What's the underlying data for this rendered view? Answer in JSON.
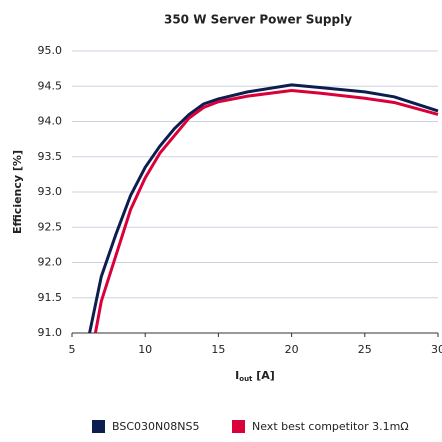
{
  "chart_data": {
    "type": "line",
    "title": "350 W Server Power Supply",
    "ylabel": "Efficiency [%]",
    "xlabel": [
      "I",
      "out",
      " [A]"
    ],
    "xlim": [
      5,
      30
    ],
    "xticks": [
      5,
      10,
      15,
      20,
      25,
      30
    ],
    "ylim": [
      91,
      95
    ],
    "yticks": [
      {
        "value": 91,
        "label": "91.0"
      },
      {
        "value": 91.5,
        "label": "91.5"
      },
      {
        "value": 92,
        "label": "92.0"
      },
      {
        "value": 92.5,
        "label": "92.5"
      },
      {
        "value": 93,
        "label": "93.0"
      },
      {
        "value": 93.5,
        "label": "93.5"
      },
      {
        "value": 94,
        "label": "94.0"
      },
      {
        "value": 94.5,
        "label": "94.5"
      },
      {
        "value": 95,
        "label": "95.0"
      }
    ],
    "grid": true,
    "legend": "bottom",
    "series": [
      {
        "name": "BSC030N08NS5",
        "color": "#0b1e4f",
        "x": [
          6.2,
          7,
          8,
          9,
          10,
          11,
          12,
          13,
          14,
          15,
          17,
          20,
          22,
          25,
          27,
          30
        ],
        "values": [
          91.0,
          91.8,
          92.4,
          92.95,
          93.35,
          93.65,
          93.9,
          94.1,
          94.25,
          94.32,
          94.42,
          94.52,
          94.48,
          94.42,
          94.35,
          94.15
        ]
      },
      {
        "name": "Next best competitor 3.1mΩ",
        "color": "#d9003b",
        "x": [
          6.6,
          7,
          8,
          9,
          10,
          11,
          12,
          13,
          14,
          15,
          17,
          20,
          22,
          25,
          27,
          30
        ],
        "values": [
          91.0,
          91.45,
          92.1,
          92.75,
          93.2,
          93.55,
          93.8,
          94.05,
          94.2,
          94.28,
          94.36,
          94.44,
          94.4,
          94.33,
          94.27,
          94.1
        ]
      }
    ]
  }
}
